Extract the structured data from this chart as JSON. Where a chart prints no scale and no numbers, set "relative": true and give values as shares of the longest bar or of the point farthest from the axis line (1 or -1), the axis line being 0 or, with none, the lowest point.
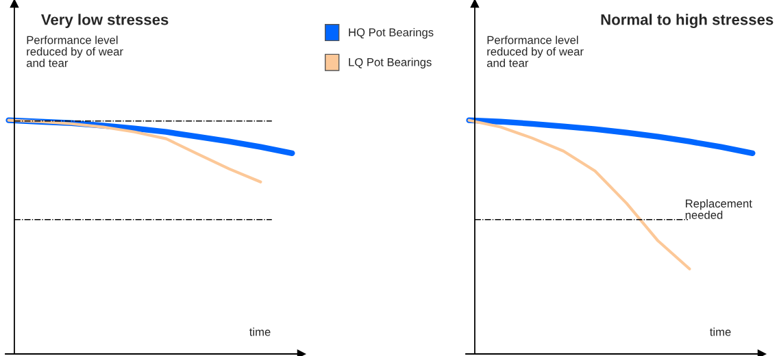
{
  "chart_data": [
    {
      "type": "line",
      "title": "Very low stresses",
      "relative": true,
      "legend": "top right",
      "grid": false,
      "categories": [
        null,
        null,
        null,
        null,
        null,
        null,
        null,
        null,
        null,
        null
      ],
      "series": [
        {
          "name": "HQ Pot Bearings",
          "color": "#0066ff",
          "values": [
            1.0,
            0.994,
            0.988,
            0.977,
            0.965,
            0.95,
            0.93,
            0.909,
            0.886,
            0.859
          ]
        },
        {
          "name": "LQ Pot Bearings",
          "color": "#fcc898",
          "values": [
            1.0,
            0.994,
            0.985,
            0.971,
            0.95,
            0.921,
            0.856,
            0.792,
            0.736,
            null
          ]
        }
      ],
      "ref_lines": [
        {
          "axis": "y",
          "value": 0.997,
          "color": "#000000",
          "line_style": "dashdot"
        },
        {
          "axis": "y",
          "value": 0.575,
          "color": "#000000",
          "line_style": "dashdot"
        }
      ],
      "annotations": [
        "Performance level\nreduced by of wear\nand tear",
        "time"
      ]
    },
    {
      "type": "line",
      "title": "Normal to high stresses",
      "relative": true,
      "grid": false,
      "categories": [
        null,
        null,
        null,
        null,
        null,
        null,
        null,
        null,
        null,
        null
      ],
      "series": [
        {
          "color": "#0066ff",
          "values": [
            1.0,
            0.994,
            0.985,
            0.974,
            0.962,
            0.947,
            0.93,
            0.909,
            0.886,
            0.859
          ]
        },
        {
          "color": "#fcc898",
          "values": [
            1.0,
            0.971,
            0.924,
            0.868,
            0.783,
            0.645,
            0.484,
            0.364,
            null,
            null
          ]
        }
      ],
      "ref_lines": [
        {
          "axis": "y",
          "value": 0.575,
          "color": "#000000",
          "line_style": "dashdot"
        }
      ],
      "annotations": [
        "Performance level\nreduced by of wear\nand tear",
        "time",
        "Replacement\nneeded"
      ]
    }
  ]
}
